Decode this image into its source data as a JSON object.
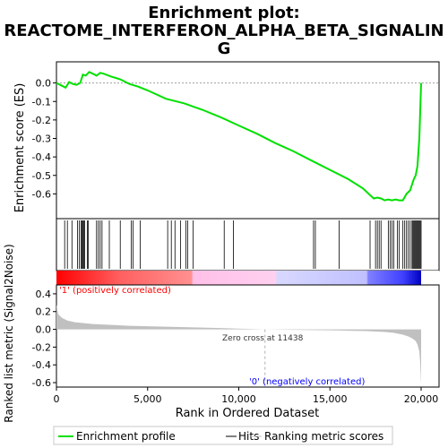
{
  "title_line1": "Enrichment plot:",
  "title_line2": "REACTOME_INTERFERON_ALPHA_BETA_SIGNALIN",
  "title_line3": "G",
  "es_axis_label": "Enrichment score (ES)",
  "metric_axis_label": "Ranked list metric (Signal2Noise)",
  "x_axis_label": "Rank in Ordered Dataset",
  "pos_label": "'1' (positively correlated)",
  "neg_label": "'0' (negatively correlated)",
  "zero_cross_label": "Zero cross at 11438",
  "legend": {
    "enrichment": "Enrichment profile",
    "hits": "Hits",
    "ranking": "Ranking metric scores"
  },
  "colors": {
    "enrichment_line": "#00e000",
    "hits": "#000000",
    "metric_fill": "#c0c0c0",
    "axis": "#000000"
  },
  "chart_data": {
    "type": "line",
    "x_range": [
      0,
      20000
    ],
    "es_ylim": [
      -0.7,
      0.1
    ],
    "metric_ylim": [
      -0.65,
      0.5
    ],
    "x_ticks": [
      0,
      5000,
      10000,
      15000,
      20000
    ],
    "x_tick_labels": [
      "0",
      "5,000",
      "10,000",
      "15,000",
      "20,000"
    ],
    "es_ticks": [
      0.0,
      -0.1,
      -0.2,
      -0.3,
      -0.4,
      -0.5,
      -0.6
    ],
    "es_tick_labels": [
      "0.0",
      "-0.1",
      "-0.2",
      "-0.3",
      "-0.4",
      "-0.5",
      "-0.6"
    ],
    "metric_ticks": [
      0.4,
      0.2,
      0.0,
      -0.2,
      -0.4,
      -0.6
    ],
    "metric_tick_labels": [
      "0.4",
      "0.2",
      "0.0",
      "-0.2",
      "-0.4",
      "-0.6"
    ],
    "zero_cross": 11438,
    "enrichment_profile": {
      "x": [
        0,
        300,
        500,
        700,
        900,
        1100,
        1300,
        1450,
        1600,
        1800,
        2000,
        2200,
        2400,
        2600,
        3000,
        3500,
        4000,
        4500,
        5000,
        6000,
        7000,
        8000,
        9000,
        10000,
        11000,
        12000,
        13000,
        14000,
        15000,
        16000,
        16800,
        17400,
        17600,
        17800,
        18000,
        18200,
        18400,
        18600,
        18800,
        19000,
        19200,
        19400,
        19500,
        19600,
        19700,
        19800,
        19850,
        19900,
        19950,
        20000
      ],
      "y": [
        0.0,
        -0.015,
        -0.025,
        0.005,
        -0.005,
        -0.01,
        0.0,
        0.045,
        0.04,
        0.06,
        0.05,
        0.04,
        0.055,
        0.05,
        0.035,
        0.02,
        -0.005,
        -0.02,
        -0.04,
        -0.085,
        -0.11,
        -0.145,
        -0.185,
        -0.23,
        -0.275,
        -0.325,
        -0.37,
        -0.42,
        -0.47,
        -0.52,
        -0.57,
        -0.625,
        -0.62,
        -0.625,
        -0.635,
        -0.63,
        -0.635,
        -0.63,
        -0.635,
        -0.635,
        -0.6,
        -0.58,
        -0.55,
        -0.52,
        -0.5,
        -0.45,
        -0.38,
        -0.3,
        -0.15,
        0.0
      ]
    },
    "hits": [
      450,
      600,
      850,
      1150,
      1250,
      1350,
      1400,
      1450,
      1500,
      1550,
      1700,
      1750,
      2200,
      2300,
      2400,
      2500,
      2900,
      3500,
      4100,
      4200,
      4600,
      6100,
      6300,
      6500,
      6800,
      7100,
      7200,
      7500,
      9200,
      9700,
      14100,
      14200,
      15500,
      17200,
      17500,
      17600,
      17700,
      17800,
      18200,
      18300,
      18400,
      18500,
      18700,
      18800,
      19000,
      19100,
      19200,
      19300,
      19400,
      19500,
      19550,
      19600,
      19650,
      19700,
      19750,
      19800,
      19850,
      19900,
      19950,
      20000
    ],
    "metric_profile": {
      "x": [
        0,
        100,
        300,
        600,
        1000,
        1500,
        2000,
        3000,
        4000,
        5000,
        7000,
        9000,
        11438,
        13000,
        15000,
        16000,
        17000,
        18000,
        18500,
        19000,
        19300,
        19500,
        19700,
        19800,
        19900,
        19950,
        20000
      ],
      "y": [
        0.28,
        0.17,
        0.13,
        0.1,
        0.08,
        0.07,
        0.06,
        0.05,
        0.04,
        0.035,
        0.025,
        0.015,
        0.0,
        -0.005,
        -0.01,
        -0.015,
        -0.02,
        -0.03,
        -0.04,
        -0.06,
        -0.08,
        -0.1,
        -0.13,
        -0.17,
        -0.25,
        -0.38,
        -0.62
      ]
    },
    "ranking_bar": {
      "stops": [
        {
          "x": 0,
          "color": "#ff0000"
        },
        {
          "x": 3500,
          "color": "#ff6060"
        },
        {
          "x": 7400,
          "color": "#ff9090"
        },
        {
          "x": 7500,
          "color": "#ffc0e8"
        },
        {
          "x": 12000,
          "color": "#ffd0f0"
        },
        {
          "x": 12100,
          "color": "#d8d8ff"
        },
        {
          "x": 17000,
          "color": "#c0c0ff"
        },
        {
          "x": 17100,
          "color": "#8080ff"
        },
        {
          "x": 19000,
          "color": "#4040ff"
        },
        {
          "x": 20000,
          "color": "#0000c0"
        }
      ]
    }
  }
}
